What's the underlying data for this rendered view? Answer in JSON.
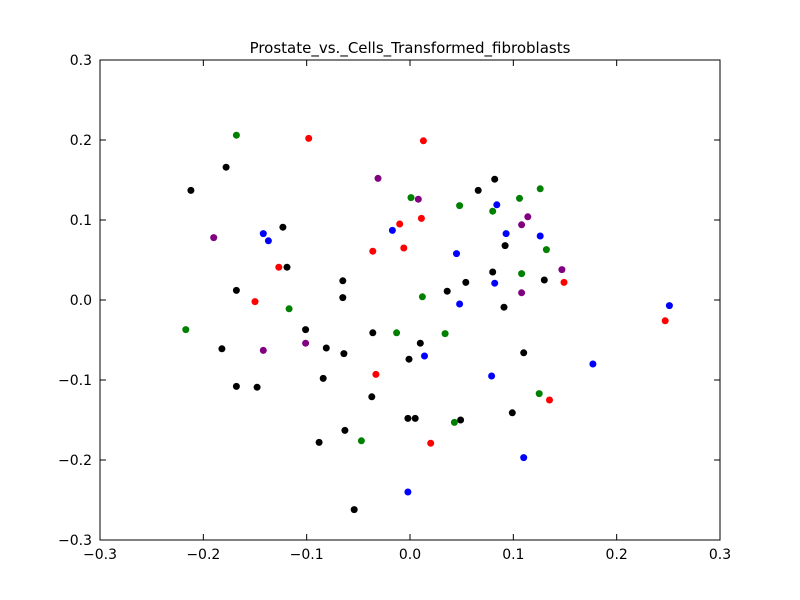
{
  "chart_data": {
    "type": "scatter",
    "title": "Prostate_vs._Cells_Transformed_fibroblasts",
    "xlabel": "",
    "ylabel": "",
    "xlim": [
      -0.3,
      0.3
    ],
    "ylim": [
      -0.3,
      0.3
    ],
    "xticks": [
      -0.3,
      -0.2,
      -0.1,
      0.0,
      0.1,
      0.2,
      0.3
    ],
    "yticks": [
      -0.3,
      -0.2,
      -0.1,
      0.0,
      0.1,
      0.2,
      0.3
    ],
    "xtick_labels": [
      "−0.3",
      "−0.2",
      "−0.1",
      "0.0",
      "0.1",
      "0.2",
      "0.3"
    ],
    "ytick_labels": [
      "−0.3",
      "−0.2",
      "−0.1",
      "0.0",
      "0.1",
      "0.2",
      "0.3"
    ],
    "grid": false,
    "series": [
      {
        "color": "#000000",
        "points": [
          [
            -0.212,
            0.137
          ],
          [
            -0.178,
            0.166
          ],
          [
            -0.168,
            0.012
          ],
          [
            -0.182,
            -0.061
          ],
          [
            -0.168,
            -0.108
          ],
          [
            -0.148,
            -0.109
          ],
          [
            -0.123,
            0.091
          ],
          [
            -0.119,
            0.041
          ],
          [
            -0.101,
            -0.037
          ],
          [
            -0.084,
            -0.098
          ],
          [
            -0.081,
            -0.06
          ],
          [
            -0.088,
            -0.178
          ],
          [
            -0.065,
            0.024
          ],
          [
            -0.065,
            0.003
          ],
          [
            -0.064,
            -0.067
          ],
          [
            -0.063,
            -0.163
          ],
          [
            -0.054,
            -0.262
          ],
          [
            -0.036,
            -0.041
          ],
          [
            -0.037,
            -0.121
          ],
          [
            -0.001,
            -0.074
          ],
          [
            -0.002,
            -0.148
          ],
          [
            0.005,
            -0.148
          ],
          [
            0.01,
            -0.054
          ],
          [
            0.036,
            0.011
          ],
          [
            0.049,
            -0.15
          ],
          [
            0.054,
            0.022
          ],
          [
            0.066,
            0.137
          ],
          [
            0.08,
            0.035
          ],
          [
            0.082,
            0.151
          ],
          [
            0.092,
            0.068
          ],
          [
            0.091,
            -0.009
          ],
          [
            0.099,
            -0.141
          ],
          [
            0.11,
            -0.066
          ],
          [
            0.13,
            0.025
          ]
        ]
      },
      {
        "color": "#ff0000",
        "points": [
          [
            -0.098,
            0.202
          ],
          [
            0.013,
            0.199
          ],
          [
            -0.127,
            0.041
          ],
          [
            -0.15,
            -0.002
          ],
          [
            -0.036,
            0.061
          ],
          [
            -0.01,
            0.095
          ],
          [
            -0.006,
            0.065
          ],
          [
            0.011,
            0.102
          ],
          [
            -0.033,
            -0.093
          ],
          [
            0.02,
            -0.179
          ],
          [
            0.135,
            -0.125
          ],
          [
            0.149,
            0.022
          ],
          [
            0.247,
            -0.026
          ]
        ]
      },
      {
        "color": "#008000",
        "points": [
          [
            -0.168,
            0.206
          ],
          [
            -0.117,
            -0.011
          ],
          [
            -0.217,
            -0.037
          ],
          [
            -0.047,
            -0.176
          ],
          [
            -0.013,
            -0.041
          ],
          [
            0.001,
            0.128
          ],
          [
            0.012,
            0.004
          ],
          [
            0.034,
            -0.042
          ],
          [
            0.043,
            -0.153
          ],
          [
            0.048,
            0.118
          ],
          [
            0.08,
            0.111
          ],
          [
            0.106,
            0.127
          ],
          [
            0.108,
            0.033
          ],
          [
            0.126,
            0.139
          ],
          [
            0.125,
            -0.117
          ],
          [
            0.132,
            0.063
          ]
        ]
      },
      {
        "color": "#0000ff",
        "points": [
          [
            -0.142,
            0.083
          ],
          [
            -0.137,
            0.074
          ],
          [
            -0.017,
            0.087
          ],
          [
            0.014,
            -0.07
          ],
          [
            -0.002,
            -0.24
          ],
          [
            0.045,
            0.058
          ],
          [
            0.048,
            -0.005
          ],
          [
            0.079,
            -0.095
          ],
          [
            0.082,
            0.021
          ],
          [
            0.084,
            0.119
          ],
          [
            0.093,
            0.083
          ],
          [
            0.11,
            -0.197
          ],
          [
            0.126,
            0.08
          ],
          [
            0.177,
            -0.08
          ],
          [
            0.251,
            -0.007
          ]
        ]
      },
      {
        "color": "#800080",
        "points": [
          [
            -0.19,
            0.078
          ],
          [
            -0.142,
            -0.063
          ],
          [
            -0.101,
            -0.054
          ],
          [
            -0.031,
            0.152
          ],
          [
            0.008,
            0.126
          ],
          [
            0.108,
            0.009
          ],
          [
            0.108,
            0.094
          ],
          [
            0.114,
            0.104
          ],
          [
            0.147,
            0.038
          ]
        ]
      }
    ]
  }
}
